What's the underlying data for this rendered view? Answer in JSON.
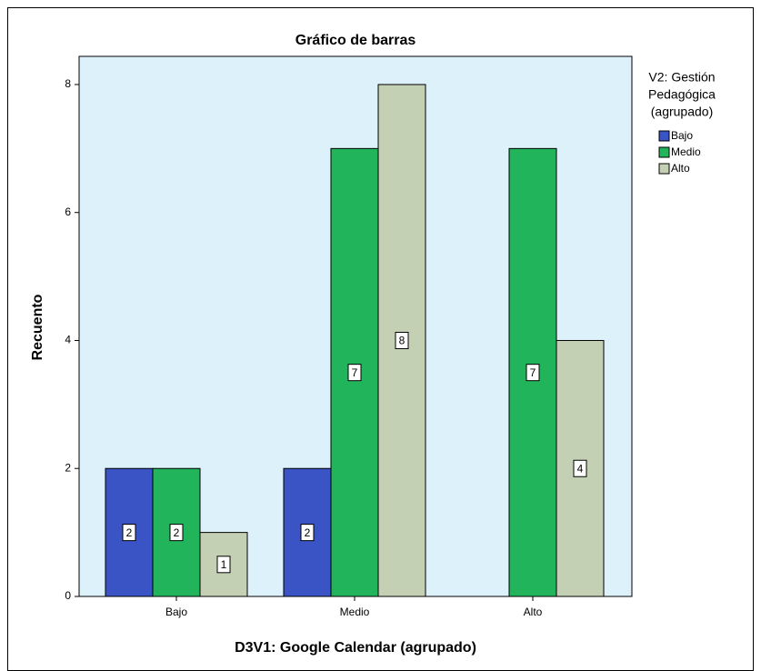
{
  "chart_data": {
    "type": "bar",
    "title": "Gráfico de barras",
    "x_label": "D3V1: Google Calendar (agrupado)",
    "y_label": "Recuento",
    "legend_title": [
      "V2: Gestión",
      "Pedagógica",
      "(agrupado)"
    ],
    "categories": [
      "Bajo",
      "Medio",
      "Alto"
    ],
    "series": [
      {
        "name": "Bajo",
        "color": "#3a53c5",
        "values": [
          2,
          2,
          null
        ]
      },
      {
        "name": "Medio",
        "color": "#22b45a",
        "values": [
          2,
          7,
          7
        ]
      },
      {
        "name": "Alto",
        "color": "#c3d0b3",
        "values": [
          1,
          8,
          4
        ]
      }
    ],
    "ylim": [
      0,
      8.44
    ],
    "yticks": [
      0,
      2,
      4,
      6,
      8
    ],
    "legend": "right"
  }
}
